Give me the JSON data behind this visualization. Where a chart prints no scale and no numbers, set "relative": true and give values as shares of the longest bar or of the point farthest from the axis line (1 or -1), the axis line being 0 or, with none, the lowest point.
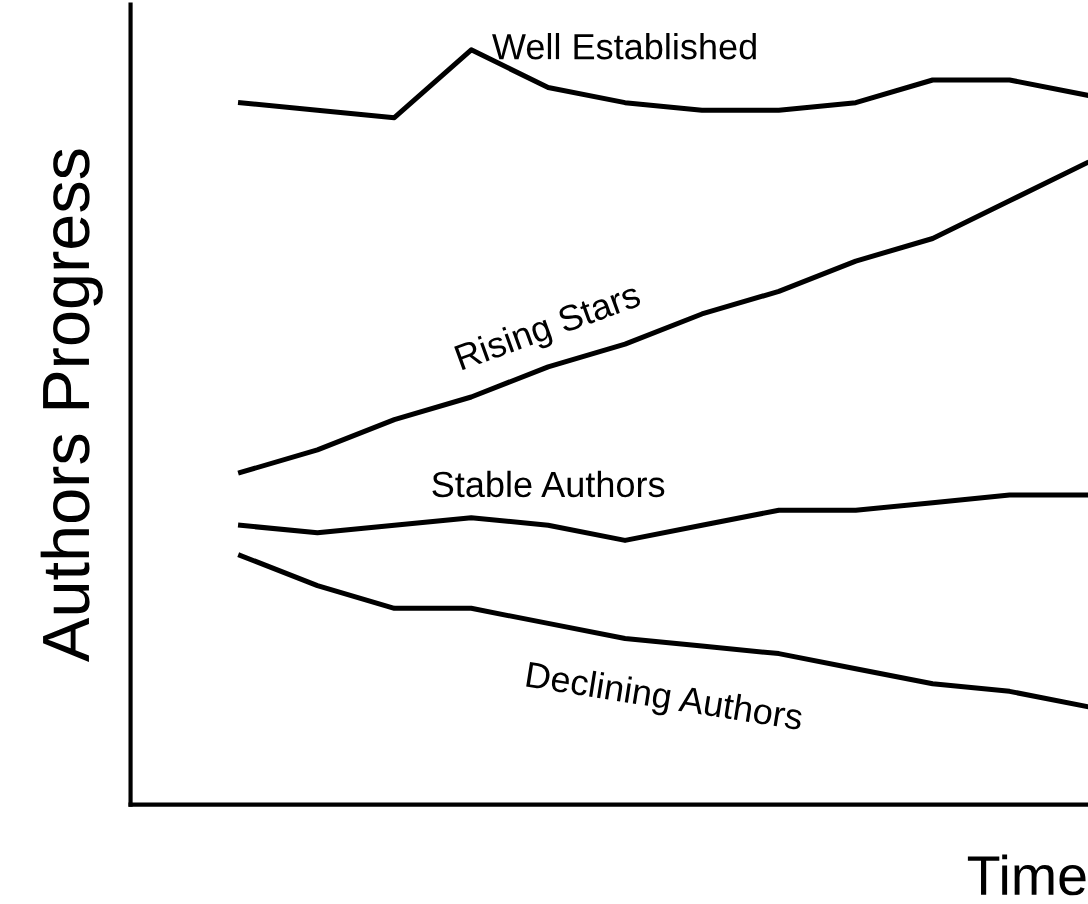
{
  "chart_data": {
    "type": "line",
    "relative": true,
    "ylabel": "Authors Progress",
    "xlabel": "Time",
    "categories": [
      null,
      null,
      null,
      null,
      null,
      null,
      null,
      null,
      null,
      null,
      null,
      null
    ],
    "series": [
      {
        "name": "Well Established",
        "color": "#000000",
        "values": [
          0.93,
          0.92,
          0.91,
          1,
          0.95,
          0.93,
          0.92,
          0.92,
          0.93,
          0.96,
          0.96,
          0.94
        ]
      },
      {
        "name": "Rising Stars",
        "color": "#000000",
        "values": [
          0.44,
          0.47,
          0.51,
          0.54,
          0.58,
          0.61,
          0.65,
          0.68,
          0.72,
          0.75,
          0.8,
          0.85
        ]
      },
      {
        "name": "Stable Authors",
        "color": "#000000",
        "values": [
          0.37,
          0.36,
          0.37,
          0.38,
          0.37,
          0.35,
          0.37,
          0.39,
          0.39,
          0.4,
          0.41,
          0.41
        ]
      },
      {
        "name": "Declining Authors",
        "color": "#000000",
        "values": [
          0.33,
          0.29,
          0.26,
          0.26,
          0.24,
          0.22,
          0.21,
          0.2,
          0.18,
          0.16,
          0.15,
          0.13
        ]
      }
    ],
    "grid": false,
    "legend": false,
    "marker": "none",
    "line_style": "solid"
  }
}
